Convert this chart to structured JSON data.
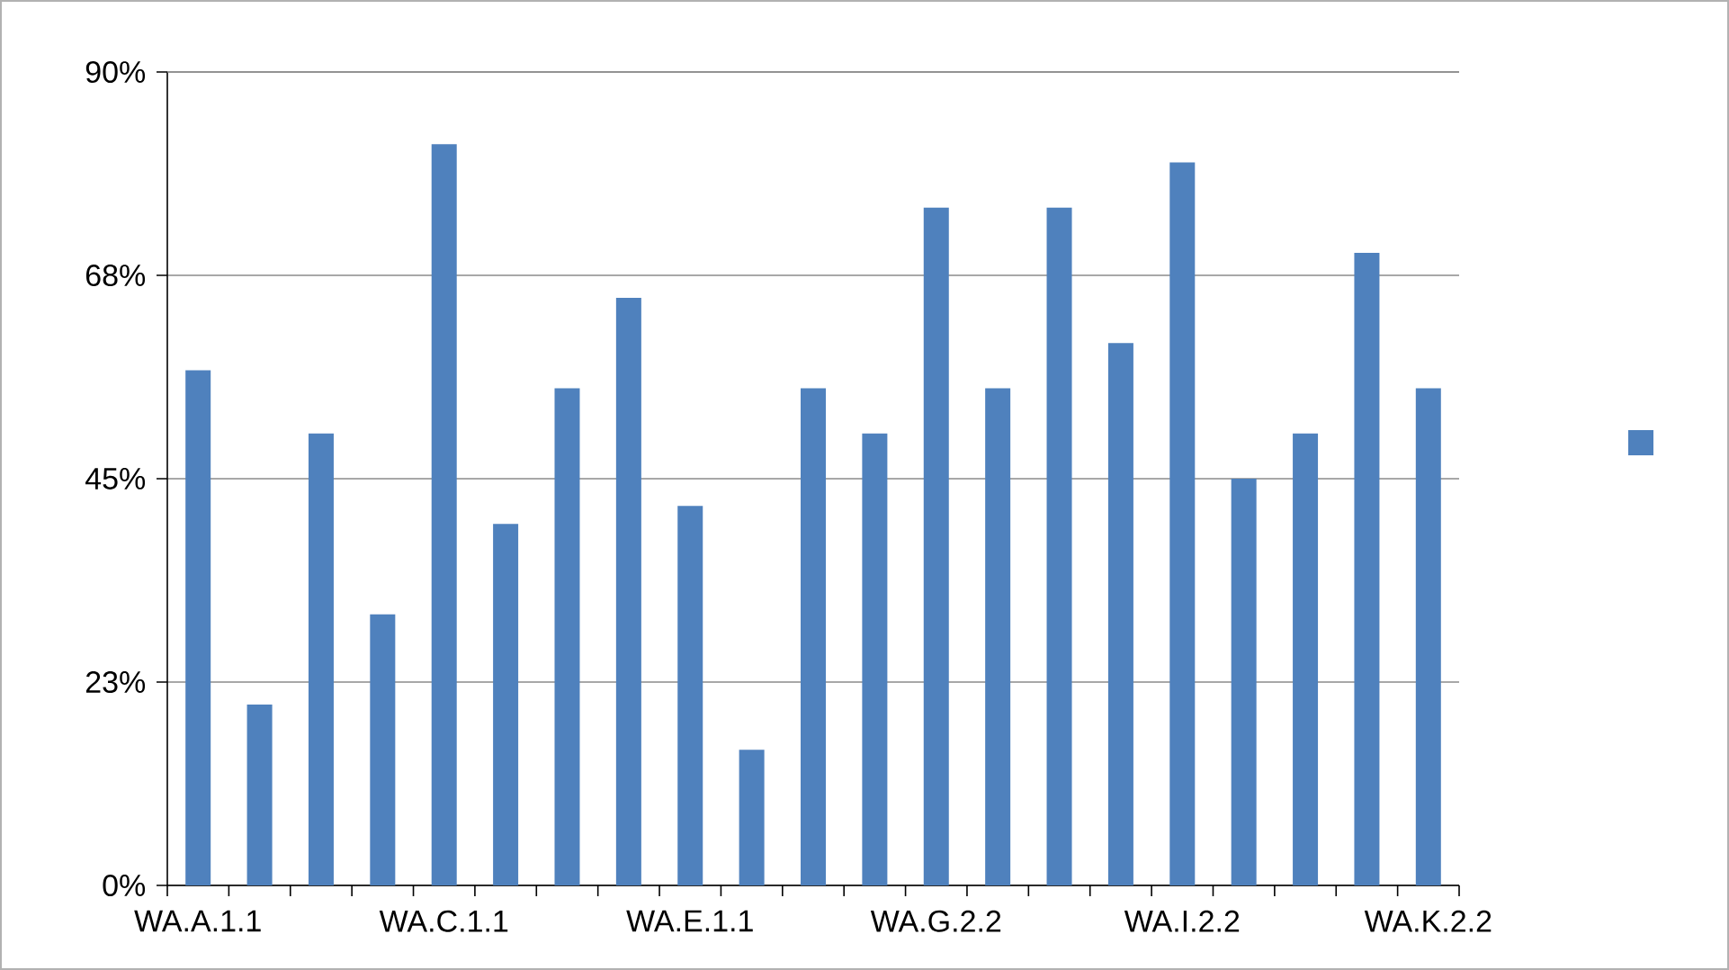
{
  "chart_data": {
    "type": "bar",
    "categories": [
      "WA.A.1.1",
      null,
      null,
      null,
      "WA.C.1.1",
      null,
      null,
      null,
      "WA.E.1.1",
      null,
      null,
      null,
      "WA.G.2.2",
      null,
      null,
      null,
      "WA.I.2.2",
      null,
      null,
      null,
      "WA.K.2.2"
    ],
    "series": [
      {
        "color": "#4f81bd",
        "values": [
          57,
          20,
          50,
          30,
          82,
          40,
          55,
          65,
          42,
          15,
          55,
          50,
          75,
          55,
          75,
          60,
          80,
          45,
          50,
          70,
          55
        ]
      }
    ],
    "ylim": [
      0,
      90
    ],
    "yticks": [
      {
        "value": 0,
        "label": "0%"
      },
      {
        "value": 22.5,
        "label": "23%"
      },
      {
        "value": 45,
        "label": "45%"
      },
      {
        "value": 67.5,
        "label": "68%"
      },
      {
        "value": 90,
        "label": "90%"
      }
    ],
    "grid": "y"
  }
}
